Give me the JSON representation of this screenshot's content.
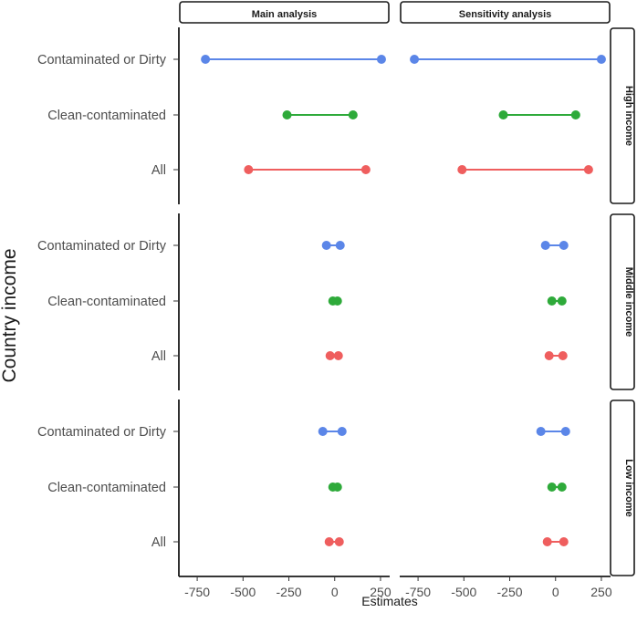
{
  "chart_data": {
    "type": "dumbbell",
    "xlabel": "Estimates",
    "ylabel": "Country income",
    "xlim": [
      -850,
      300
    ],
    "xticks": [
      -750,
      -500,
      -250,
      0,
      250
    ],
    "xtick_labels": [
      "-750",
      "-500",
      "-250",
      "0",
      "250"
    ],
    "columns": [
      "Main analysis",
      "Sensitivity analysis"
    ],
    "rows": [
      "High income",
      "Middle income",
      "Low income"
    ],
    "categories": [
      "Contaminated or Dirty",
      "Clean-contaminated",
      "All"
    ],
    "category_colors": {
      "Contaminated or Dirty": "#5b86e8",
      "Clean-contaminated": "#2eaa3a",
      "All": "#ef5e5e"
    },
    "panels": [
      {
        "column": "Main analysis",
        "row": "High income",
        "segments": [
          {
            "category": "Contaminated or Dirty",
            "low": -705,
            "high": 255
          },
          {
            "category": "Clean-contaminated",
            "low": -260,
            "high": 100
          },
          {
            "category": "All",
            "low": -470,
            "high": 170
          }
        ]
      },
      {
        "column": "Sensitivity analysis",
        "row": "High income",
        "segments": [
          {
            "category": "Contaminated or Dirty",
            "low": -770,
            "high": 250
          },
          {
            "category": "Clean-contaminated",
            "low": -285,
            "high": 110
          },
          {
            "category": "All",
            "low": -510,
            "high": 180
          }
        ]
      },
      {
        "column": "Main analysis",
        "row": "Middle income",
        "segments": [
          {
            "category": "Contaminated or Dirty",
            "low": -45,
            "high": 30
          },
          {
            "category": "Clean-contaminated",
            "low": -10,
            "high": 15
          },
          {
            "category": "All",
            "low": -25,
            "high": 20
          }
        ]
      },
      {
        "column": "Sensitivity analysis",
        "row": "Middle income",
        "segments": [
          {
            "category": "Contaminated or Dirty",
            "low": -55,
            "high": 45
          },
          {
            "category": "Clean-contaminated",
            "low": -20,
            "high": 35
          },
          {
            "category": "All",
            "low": -35,
            "high": 40
          }
        ]
      },
      {
        "column": "Main analysis",
        "row": "Low income",
        "segments": [
          {
            "category": "Contaminated or Dirty",
            "low": -65,
            "high": 40
          },
          {
            "category": "Clean-contaminated",
            "low": -10,
            "high": 15
          },
          {
            "category": "All",
            "low": -30,
            "high": 25
          }
        ]
      },
      {
        "column": "Sensitivity analysis",
        "row": "Low income",
        "segments": [
          {
            "category": "Contaminated or Dirty",
            "low": -80,
            "high": 55
          },
          {
            "category": "Clean-contaminated",
            "low": -20,
            "high": 35
          },
          {
            "category": "All",
            "low": -45,
            "high": 45
          }
        ]
      }
    ]
  }
}
